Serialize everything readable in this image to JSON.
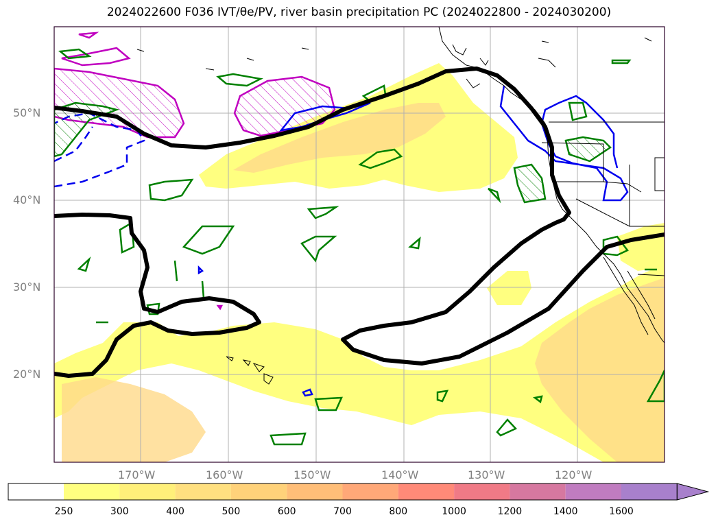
{
  "title": "2024022600 F036 IVT/θe/PV, river basin precipitation PC (2024022800 - 2024030200)",
  "longitude_labels": [
    "170°W",
    "160°W",
    "150°W",
    "140°W",
    "130°W",
    "120°W"
  ],
  "latitude_labels": [
    "50°N",
    "40°N",
    "30°N",
    "20°N"
  ],
  "colorbar": {
    "levels": [
      "250",
      "300",
      "400",
      "500",
      "600",
      "700",
      "800",
      "1000",
      "1200",
      "1400",
      "1600"
    ],
    "colors": [
      "#ffffff",
      "#ffff80",
      "#fff07a",
      "#ffe080",
      "#ffd27a",
      "#ffbe78",
      "#ffa878",
      "#ff8a78",
      "#f07a86",
      "#d678a0",
      "#c07cc0",
      "#a880cc"
    ]
  },
  "colors": {
    "ivt_fill_low": "#ffff80",
    "ivt_fill_mid": "#fff07a",
    "ivt_fill_high": "#ffd98a",
    "theta_e_contour": "#000000",
    "pv_contour": "#c000c0",
    "precip_contour_blue": "#0000ee",
    "precip_contour_green": "#008000",
    "grid": "#b0b0b0"
  }
}
